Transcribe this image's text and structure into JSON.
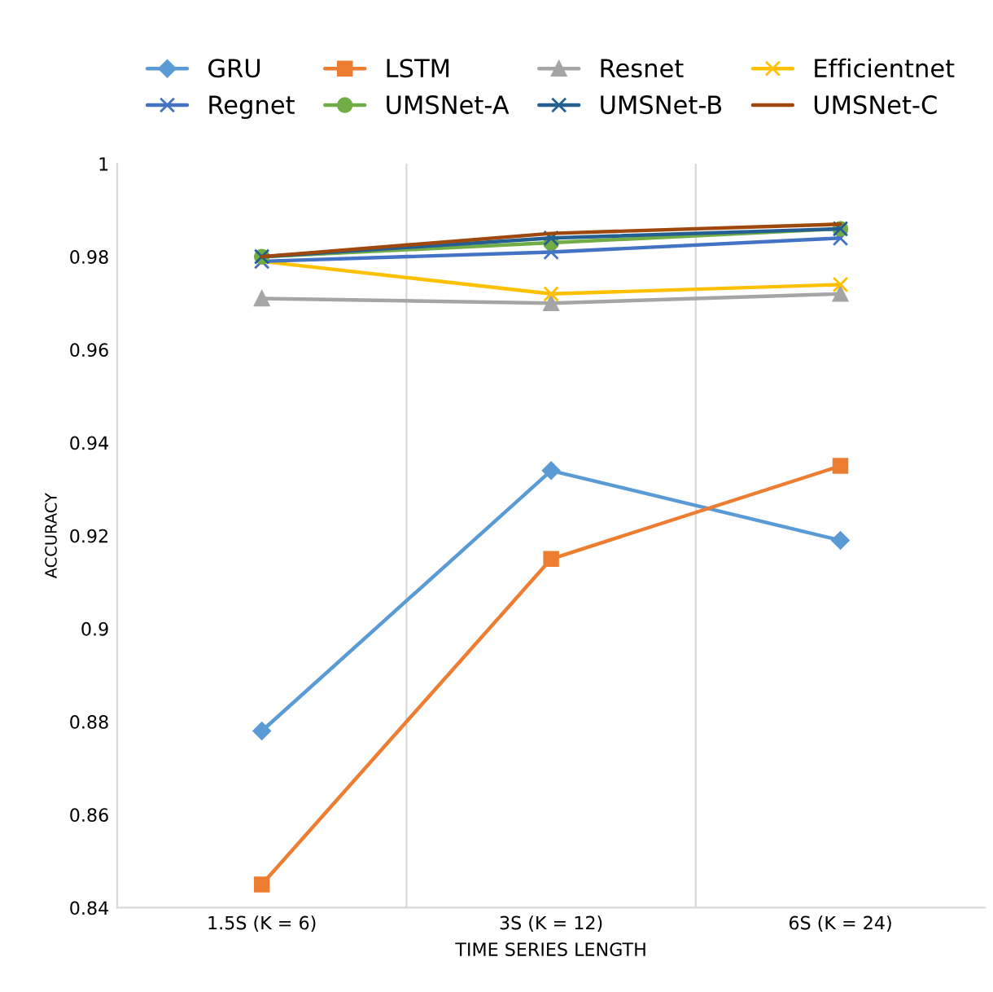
{
  "chart_data": {
    "type": "line",
    "xlabel": "TIME SERIES LENGTH",
    "ylabel": "ACCURACY",
    "categories": [
      "1.5S (K = 6)",
      "3S (K = 12)",
      "6S (K = 24)"
    ],
    "ylim": [
      0.84,
      1
    ],
    "yticks": [
      0.84,
      0.86,
      0.88,
      0.9,
      0.92,
      0.94,
      0.96,
      0.98,
      1
    ],
    "grid": "x",
    "legend": "top",
    "series": [
      {
        "name": "GRU",
        "color": "#5b9bd5",
        "marker": "diamond",
        "values": [
          0.878,
          0.934,
          0.919
        ]
      },
      {
        "name": "LSTM",
        "color": "#ed7d31",
        "marker": "square",
        "values": [
          0.845,
          0.915,
          0.935
        ]
      },
      {
        "name": "Resnet",
        "color": "#a5a5a5",
        "marker": "triangle",
        "values": [
          0.971,
          0.97,
          0.972
        ]
      },
      {
        "name": "Efficientnet",
        "color": "#ffc000",
        "marker": "cross",
        "values": [
          0.979,
          0.972,
          0.974
        ]
      },
      {
        "name": "Regnet",
        "color": "#4472c4",
        "marker": "cross",
        "values": [
          0.979,
          0.981,
          0.984
        ]
      },
      {
        "name": "UMSNet-A",
        "color": "#70ad47",
        "marker": "circle",
        "values": [
          0.98,
          0.983,
          0.986
        ]
      },
      {
        "name": "UMSNet-B",
        "color": "#255e91",
        "marker": "cross",
        "values": [
          0.98,
          0.984,
          0.986
        ]
      },
      {
        "name": "UMSNet-C",
        "color": "#9e480e",
        "marker": "none",
        "values": [
          0.98,
          0.985,
          0.987
        ]
      }
    ]
  }
}
